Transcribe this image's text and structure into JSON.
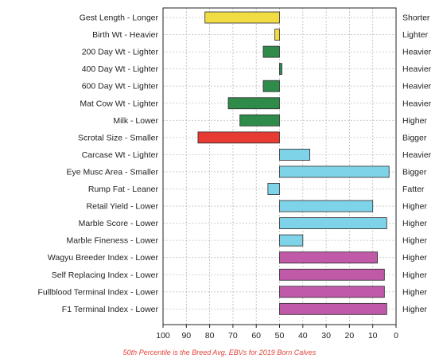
{
  "chart_data": {
    "type": "bar",
    "orientation": "horizontal",
    "baseline": 50,
    "categories": [
      "Gest Length - Longer",
      "Birth Wt - Heavier",
      "200 Day Wt - Lighter",
      "400 Day Wt - Lighter",
      "600 Day Wt - Lighter",
      "Mat Cow Wt - Lighter",
      "Milk - Lower",
      "Scrotal Size - Smaller",
      "Carcase Wt - Lighter",
      "Eye Musc Area - Smaller",
      "Rump Fat - Leaner",
      "Retail Yield - Lower",
      "Marble Score - Lower",
      "Marble Fineness - Lower",
      "Wagyu Breeder Index - Lower",
      "Self Replacing Index - Lower",
      "Fullblood Terminal Index - Lower",
      "F1 Terminal Index - Lower"
    ],
    "right_labels": [
      "Shorter",
      "Lighter",
      "Heavier",
      "Heavier",
      "Heavier",
      "Heavier",
      "Higher",
      "Bigger",
      "Heavier",
      "Bigger",
      "Fatter",
      "Higher",
      "Higher",
      "Higher",
      "Higher",
      "Higher",
      "Higher",
      "Higher"
    ],
    "values": [
      82,
      52,
      57,
      49,
      57,
      72,
      67,
      85,
      37,
      3,
      55,
      10,
      4,
      40,
      8,
      5,
      5,
      4
    ],
    "bar_colors": [
      "#f2dc44",
      "#f2dc44",
      "#2e8b4a",
      "#2e8b4a",
      "#2e8b4a",
      "#2e8b4a",
      "#2e8b4a",
      "#e63a32",
      "#7fd3e8",
      "#7fd3e8",
      "#7fd3e8",
      "#7fd3e8",
      "#7fd3e8",
      "#7fd3e8",
      "#c059a8",
      "#c059a8",
      "#c059a8",
      "#c059a8"
    ],
    "x_axis": {
      "reversed": true,
      "range": [
        100,
        0
      ],
      "ticks": [
        "100",
        "90",
        "80",
        "70",
        "60",
        "50",
        "40",
        "30",
        "20",
        "10",
        "0"
      ]
    },
    "grid": true,
    "footnote": "50th Percentile is the Breed Avg. EBVs for 2019 Born Calves"
  }
}
